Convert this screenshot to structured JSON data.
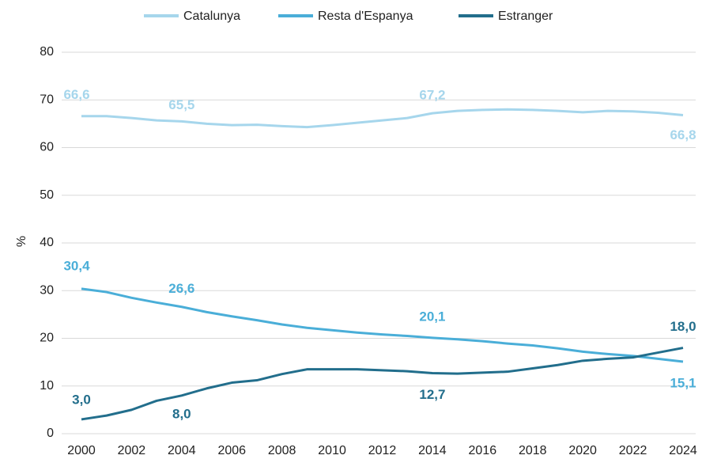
{
  "chart_data": {
    "type": "line",
    "y_label": "%",
    "x": [
      2000,
      2001,
      2002,
      2003,
      2004,
      2005,
      2006,
      2007,
      2008,
      2009,
      2010,
      2011,
      2012,
      2013,
      2014,
      2015,
      2016,
      2017,
      2018,
      2019,
      2020,
      2021,
      2022,
      2023,
      2024
    ],
    "series": [
      {
        "name": "Catalunya",
        "color": "#a6d6ec",
        "values": [
          66.6,
          66.6,
          66.2,
          65.7,
          65.5,
          65.0,
          64.7,
          64.8,
          64.5,
          64.3,
          64.7,
          65.2,
          65.7,
          66.2,
          67.2,
          67.7,
          67.9,
          68.0,
          67.9,
          67.7,
          67.4,
          67.7,
          67.6,
          67.3,
          66.8
        ],
        "value_labels": [
          "66,6",
          null,
          null,
          null,
          "65,5",
          null,
          null,
          null,
          null,
          null,
          null,
          null,
          null,
          null,
          "67,2",
          null,
          null,
          null,
          null,
          null,
          null,
          null,
          null,
          null,
          "66,8"
        ]
      },
      {
        "name": "Resta d'Espanya",
        "color": "#4aaed8",
        "values": [
          30.4,
          29.7,
          28.5,
          27.5,
          26.6,
          25.5,
          24.6,
          23.8,
          22.9,
          22.2,
          21.7,
          21.2,
          20.8,
          20.5,
          20.1,
          19.8,
          19.4,
          18.9,
          18.5,
          17.9,
          17.2,
          16.7,
          16.3,
          15.7,
          15.1
        ],
        "value_labels": [
          "30,4",
          null,
          null,
          null,
          "26,6",
          null,
          null,
          null,
          null,
          null,
          null,
          null,
          null,
          null,
          "20,1",
          null,
          null,
          null,
          null,
          null,
          null,
          null,
          null,
          null,
          "15,1"
        ]
      },
      {
        "name": "Estranger",
        "color": "#226e8c",
        "values": [
          3.0,
          3.8,
          5.0,
          6.9,
          8.0,
          9.5,
          10.7,
          11.2,
          12.5,
          13.5,
          13.5,
          13.5,
          13.3,
          13.1,
          12.7,
          12.6,
          12.8,
          13.0,
          13.7,
          14.4,
          15.3,
          15.7,
          16.0,
          17.0,
          18.0
        ],
        "value_labels": [
          "3,0",
          null,
          null,
          null,
          "8,0",
          null,
          null,
          null,
          null,
          null,
          null,
          null,
          null,
          null,
          "12,7",
          null,
          null,
          null,
          null,
          null,
          null,
          null,
          null,
          null,
          "18,0"
        ]
      }
    ],
    "xlim": [
      2000,
      2024
    ],
    "xticks": [
      2000,
      2002,
      2004,
      2006,
      2008,
      2010,
      2012,
      2014,
      2016,
      2018,
      2020,
      2022,
      2024
    ],
    "ylim": [
      0,
      80
    ],
    "yticks": [
      0,
      10,
      20,
      30,
      40,
      50,
      60,
      70,
      80
    ],
    "grid": true,
    "legend": "top"
  }
}
